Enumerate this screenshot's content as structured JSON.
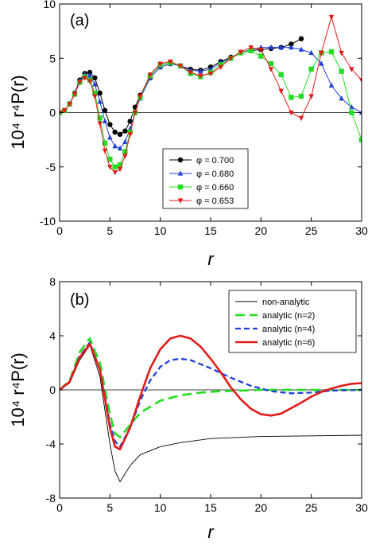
{
  "chart_data": [
    {
      "type": "line",
      "panel_label": "(a)",
      "xlabel": "r",
      "ylabel": "10⁴ r⁴P(r)",
      "xlim": [
        0,
        30
      ],
      "ylim": [
        -10,
        10
      ],
      "xticks": [
        "0",
        "5",
        "10",
        "15",
        "20",
        "25",
        "30"
      ],
      "yticks": [
        "-10",
        "-5",
        "0",
        "5",
        "10"
      ],
      "xtick_values": [
        0,
        5,
        10,
        15,
        20,
        25,
        30
      ],
      "ytick_values": [
        -10,
        -5,
        0,
        5,
        10
      ],
      "zero_line": true,
      "grid": false,
      "legend_position": "center",
      "series": [
        {
          "name": "φ = 0.700",
          "color": "#000000",
          "marker": "circle",
          "x": [
            0,
            0.5,
            1,
            1.5,
            2,
            2.5,
            3,
            3.5,
            4,
            4.5,
            5,
            5.5,
            6,
            6.5,
            7,
            7.5,
            8,
            9,
            10,
            11,
            12,
            13,
            14,
            15,
            16,
            17,
            18,
            19,
            20,
            21,
            22,
            23,
            24
          ],
          "y": [
            0,
            0.2,
            0.8,
            1.8,
            3,
            3.6,
            3.7,
            3.2,
            1.8,
            0.2,
            -1.1,
            -1.8,
            -2,
            -1.7,
            -0.8,
            0.5,
            1.6,
            3.2,
            4.2,
            4.5,
            4.3,
            4,
            3.9,
            4.2,
            4.7,
            5.1,
            5.5,
            5.7,
            5.8,
            5.9,
            6,
            6.3,
            6.8
          ]
        },
        {
          "name": "φ = 0.680",
          "color": "#1f3fd8",
          "marker": "triangle-up",
          "x": [
            0,
            0.5,
            1,
            1.5,
            2,
            2.5,
            3,
            3.5,
            4,
            4.5,
            5,
            5.5,
            6,
            6.5,
            7,
            7.5,
            8,
            9,
            10,
            11,
            12,
            13,
            14,
            15,
            16,
            17,
            18,
            19,
            20,
            21,
            22,
            23,
            24,
            25,
            26,
            27,
            28,
            29,
            30
          ],
          "y": [
            0,
            0.2,
            0.8,
            1.8,
            2.9,
            3.5,
            3.4,
            2.6,
            1,
            -0.8,
            -2.3,
            -3.1,
            -3.3,
            -2.7,
            -1.5,
            0,
            1.3,
            3.2,
            4.2,
            4.5,
            4.3,
            3.9,
            3.8,
            4,
            4.6,
            5,
            5.5,
            5.8,
            6,
            6,
            6,
            6,
            5.8,
            5.5,
            4.5,
            2.5,
            1.3,
            0.5,
            0
          ]
        },
        {
          "name": "φ = 0.660",
          "color": "#22dd22",
          "marker": "square",
          "x": [
            0,
            0.5,
            1,
            1.5,
            2,
            2.5,
            3,
            3.5,
            4,
            4.5,
            5,
            5.5,
            6,
            6.5,
            7,
            7.5,
            8,
            9,
            10,
            11,
            12,
            13,
            14,
            15,
            16,
            17,
            18,
            19,
            20,
            21,
            22,
            23,
            24,
            25,
            26,
            27,
            28,
            29,
            30
          ],
          "y": [
            0,
            0.2,
            0.8,
            1.7,
            2.8,
            3.3,
            3,
            1.8,
            -0.5,
            -2.8,
            -4.3,
            -5,
            -4.8,
            -3.6,
            -1.8,
            0,
            1.4,
            3.4,
            4.4,
            4.6,
            4.3,
            3.6,
            3.3,
            3.7,
            4.4,
            5,
            5.5,
            5.7,
            5.2,
            4.5,
            3.5,
            1.4,
            1.5,
            4,
            5.5,
            5.6,
            3.8,
            0,
            -2.5
          ]
        },
        {
          "name": "φ = 0.653",
          "color": "#e41a1a",
          "marker": "triangle-down",
          "x": [
            0,
            0.5,
            1,
            1.5,
            2,
            2.5,
            3,
            3.5,
            4,
            4.5,
            5,
            5.5,
            6,
            6.5,
            7,
            7.5,
            8,
            9,
            10,
            11,
            12,
            13,
            14,
            15,
            16,
            17,
            18,
            19,
            20,
            21,
            22,
            23,
            24,
            25,
            26,
            27,
            28,
            29,
            30
          ],
          "y": [
            0,
            0.2,
            0.8,
            1.7,
            2.8,
            3.2,
            2.9,
            1.5,
            -1,
            -3.5,
            -5,
            -5.5,
            -5.2,
            -4,
            -2,
            0,
            1.5,
            3.5,
            4.5,
            4.7,
            4.3,
            3.7,
            3.4,
            3.6,
            4.2,
            5,
            5.6,
            6,
            5.8,
            4,
            2,
            0,
            -0.5,
            1.5,
            5.5,
            8.8,
            5.5,
            4,
            3
          ]
        }
      ]
    },
    {
      "type": "line",
      "panel_label": "(b)",
      "xlabel": "r",
      "ylabel": "10⁴ r⁴P(r)",
      "xlim": [
        0,
        30
      ],
      "ylim": [
        -8,
        8
      ],
      "xticks": [
        "0",
        "5",
        "10",
        "15",
        "20",
        "25",
        "30"
      ],
      "yticks": [
        "-8",
        "-4",
        "0",
        "4",
        "8"
      ],
      "xtick_values": [
        0,
        5,
        10,
        15,
        20,
        25,
        30
      ],
      "ytick_values": [
        -8,
        -4,
        0,
        4,
        8
      ],
      "zero_line": true,
      "grid": false,
      "legend_position": "top-right",
      "series": [
        {
          "name": "non-analytic",
          "color": "#000000",
          "style": "solid-thin",
          "x": [
            0,
            1,
            2,
            3,
            4,
            5,
            5.5,
            6,
            7,
            8,
            10,
            12,
            15,
            20,
            25,
            30
          ],
          "y": [
            0,
            0.5,
            2.2,
            3.3,
            1,
            -4,
            -6,
            -6.8,
            -5.6,
            -4.8,
            -4.2,
            -3.9,
            -3.6,
            -3.45,
            -3.4,
            -3.35
          ]
        },
        {
          "name": "analytic (n=2)",
          "color": "#22dd22",
          "style": "long-dash",
          "x": [
            0,
            1,
            2,
            3,
            4,
            5,
            5.5,
            6,
            7,
            8,
            10,
            12,
            14,
            16,
            18,
            20,
            25,
            30
          ],
          "y": [
            0,
            0.7,
            2.8,
            3.8,
            2,
            -1.8,
            -3.2,
            -3.5,
            -2.6,
            -1.7,
            -0.8,
            -0.4,
            -0.2,
            -0.1,
            -0.05,
            0,
            0,
            0
          ]
        },
        {
          "name": "analytic (n=4)",
          "color": "#1f3fd8",
          "style": "dash",
          "x": [
            0,
            1,
            2,
            3,
            4,
            5,
            5.5,
            6,
            7,
            8,
            9,
            10,
            11,
            12,
            13,
            15,
            17,
            19,
            21,
            23,
            25,
            27,
            30
          ],
          "y": [
            0,
            0.6,
            2.5,
            3.5,
            1.5,
            -2.5,
            -3.8,
            -4.2,
            -2.8,
            -0.8,
            0.7,
            1.7,
            2.2,
            2.3,
            2.2,
            1.6,
            0.9,
            0.3,
            -0.1,
            -0.25,
            -0.2,
            -0.05,
            0
          ]
        },
        {
          "name": "analytic (n=6)",
          "color": "#e41a1a",
          "style": "solid-thick",
          "x": [
            0,
            1,
            2,
            3,
            4,
            5,
            5.5,
            6,
            7,
            8,
            9,
            10,
            11,
            12,
            13,
            14,
            15,
            16,
            17,
            18,
            19,
            20,
            21,
            22,
            23,
            24,
            25,
            26,
            27,
            28,
            29,
            30
          ],
          "y": [
            0,
            0.6,
            2.4,
            3.4,
            1.5,
            -2.8,
            -4.2,
            -4.4,
            -2.8,
            -0.5,
            1.6,
            3,
            3.8,
            4,
            3.8,
            3.2,
            2.3,
            1.3,
            0.2,
            -0.7,
            -1.4,
            -1.8,
            -1.9,
            -1.75,
            -1.35,
            -0.95,
            -0.5,
            -0.15,
            0.1,
            0.3,
            0.45,
            0.5
          ]
        }
      ]
    }
  ]
}
